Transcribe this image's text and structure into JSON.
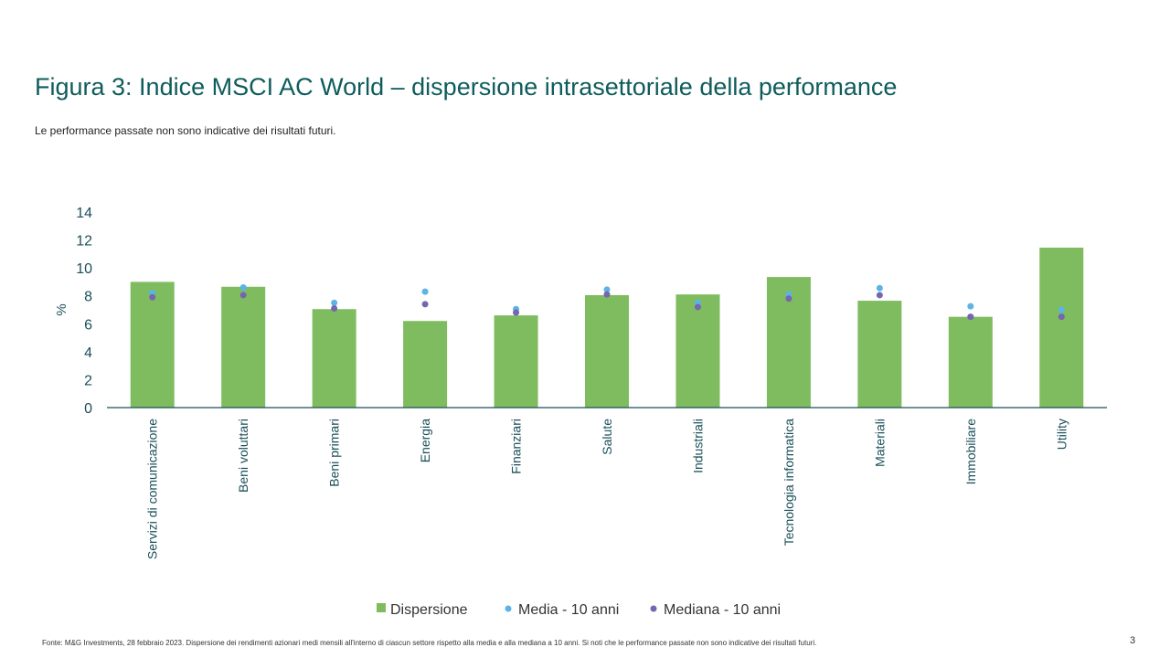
{
  "title": "Figura 3: Indice MSCI AC World – dispersione intrasettoriale della performance",
  "subtitle": "Le performance passate non sono indicative dei risultati futuri.",
  "footer": "Fonte: M&G Investments, 28 febbraio 2023. Dispersione dei rendimenti azionari medi mensili all'interno di ciascun settore rispetto alla media e alla mediana a 10 anni. Si noti che le performance passate non sono indicative dei risultati futuri.",
  "page_number": "3",
  "colors": {
    "bar": "#7fbc5f",
    "media": "#5cb3e6",
    "mediana": "#7466b0",
    "axis": "#1a4f5a",
    "text": "#0f5c5c"
  },
  "chart_data": {
    "type": "bar",
    "title": "Figura 3: Indice MSCI AC World – dispersione intrasettoriale della performance",
    "xlabel": "",
    "ylabel": "%",
    "ylim": [
      0,
      14
    ],
    "yticks": [
      "0",
      "2",
      "4",
      "6",
      "8",
      "10",
      "12",
      "14"
    ],
    "categories": [
      "Servizi di comunicazione",
      "Beni voluttari",
      "Beni primari",
      "Energia",
      "Finanziari",
      "Salute",
      "Industriali",
      "Tecnologia informatica",
      "Materiali",
      "Immobiliare",
      "Utility"
    ],
    "series": [
      {
        "name": "Dispersione",
        "kind": "bar",
        "values": [
          9.0,
          8.65,
          7.05,
          6.2,
          6.6,
          8.05,
          8.1,
          9.35,
          7.65,
          6.5,
          11.45
        ]
      },
      {
        "name": "Media - 10 anni",
        "kind": "dot",
        "values": [
          8.2,
          8.6,
          7.5,
          8.3,
          7.05,
          8.45,
          7.5,
          8.1,
          8.55,
          7.25,
          7.0
        ]
      },
      {
        "name": "Mediana - 10 anni",
        "kind": "dot",
        "values": [
          7.9,
          8.05,
          7.1,
          7.4,
          6.8,
          8.1,
          7.2,
          7.8,
          8.05,
          6.5,
          6.5
        ]
      }
    ],
    "legend": "bottom",
    "grid": false
  }
}
